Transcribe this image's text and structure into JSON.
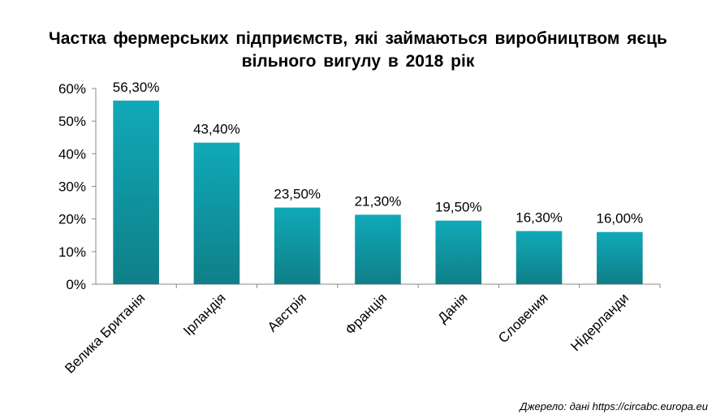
{
  "chart_data": {
    "type": "bar",
    "title_lines": [
      "Частка фермерських підприємств, які займаються виробництвом яєць",
      "вільного вигулу в 2018 рік"
    ],
    "categories": [
      "Велика Британія",
      "Ірландія",
      "Австрія",
      "Франція",
      "Данія",
      "Словения",
      "Нідерланди"
    ],
    "values": [
      56.3,
      43.4,
      23.5,
      21.3,
      19.5,
      16.3,
      16.0
    ],
    "value_labels": [
      "56,30%",
      "43,40%",
      "23,50%",
      "21,30%",
      "19,50%",
      "16,30%",
      "16,00%"
    ],
    "yticks": [
      "0%",
      "10%",
      "20%",
      "30%",
      "40%",
      "50%",
      "60%"
    ],
    "ylim": [
      0,
      60
    ],
    "xlabel": "",
    "ylabel": "",
    "grid": false,
    "legend": "none",
    "colors": {
      "bar_top": "#10a9b8",
      "bar_bottom": "#0f7f88",
      "axis": "#888888"
    }
  },
  "source": "Джерело: дані https://circabc.europa.eu"
}
